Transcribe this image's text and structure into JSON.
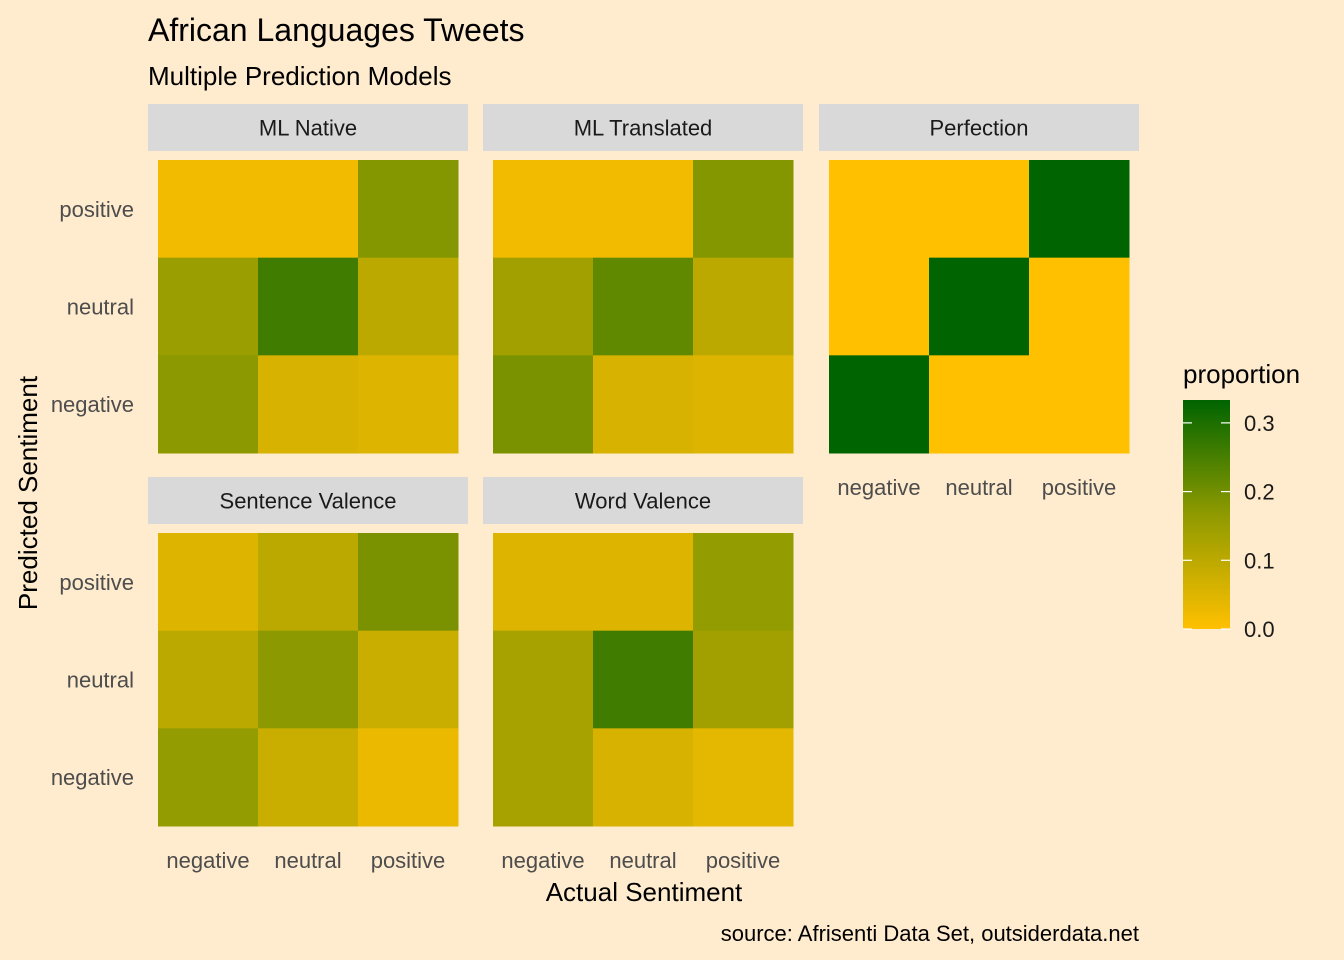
{
  "chart_data": {
    "type": "heatmap",
    "title": "African Languages Tweets",
    "subtitle": "Multiple Prediction Models",
    "xlabel": "Actual Sentiment",
    "ylabel": "Predicted Sentiment",
    "caption": "source: Afrisenti Data Set, outsiderdata.net",
    "categories_x": [
      "negative",
      "neutral",
      "positive"
    ],
    "categories_y": [
      "negative",
      "neutral",
      "positive"
    ],
    "legend": {
      "title": "proportion",
      "ticks": [
        "0.0",
        "0.1",
        "0.2",
        "0.3"
      ],
      "tick_values": [
        0,
        0.1,
        0.2,
        0.3
      ],
      "range": [
        0,
        0.3333
      ],
      "low_color": "#FFC000",
      "mid_color": "#8F9A00",
      "high_color": "#006400",
      "placement": "right"
    },
    "panels": [
      {
        "name": "ML Native",
        "cells": [
          {
            "actual": "negative",
            "predicted": "positive",
            "value": 0.02
          },
          {
            "actual": "neutral",
            "predicted": "positive",
            "value": 0.02
          },
          {
            "actual": "positive",
            "predicted": "positive",
            "value": 0.18
          },
          {
            "actual": "negative",
            "predicted": "neutral",
            "value": 0.15
          },
          {
            "actual": "neutral",
            "predicted": "neutral",
            "value": 0.26
          },
          {
            "actual": "positive",
            "predicted": "neutral",
            "value": 0.1
          },
          {
            "actual": "negative",
            "predicted": "negative",
            "value": 0.17
          },
          {
            "actual": "neutral",
            "predicted": "negative",
            "value": 0.06
          },
          {
            "actual": "positive",
            "predicted": "negative",
            "value": 0.05
          }
        ]
      },
      {
        "name": "ML Translated",
        "cells": [
          {
            "actual": "negative",
            "predicted": "positive",
            "value": 0.02
          },
          {
            "actual": "neutral",
            "predicted": "positive",
            "value": 0.02
          },
          {
            "actual": "positive",
            "predicted": "positive",
            "value": 0.18
          },
          {
            "actual": "negative",
            "predicted": "neutral",
            "value": 0.14
          },
          {
            "actual": "neutral",
            "predicted": "neutral",
            "value": 0.22
          },
          {
            "actual": "positive",
            "predicted": "neutral",
            "value": 0.1
          },
          {
            "actual": "negative",
            "predicted": "negative",
            "value": 0.19
          },
          {
            "actual": "neutral",
            "predicted": "negative",
            "value": 0.06
          },
          {
            "actual": "positive",
            "predicted": "negative",
            "value": 0.05
          }
        ]
      },
      {
        "name": "Perfection",
        "cells": [
          {
            "actual": "negative",
            "predicted": "positive",
            "value": 0.0
          },
          {
            "actual": "neutral",
            "predicted": "positive",
            "value": 0.0
          },
          {
            "actual": "positive",
            "predicted": "positive",
            "value": 0.3333
          },
          {
            "actual": "negative",
            "predicted": "neutral",
            "value": 0.0
          },
          {
            "actual": "neutral",
            "predicted": "neutral",
            "value": 0.3333
          },
          {
            "actual": "positive",
            "predicted": "neutral",
            "value": 0.0
          },
          {
            "actual": "negative",
            "predicted": "negative",
            "value": 0.3333
          },
          {
            "actual": "neutral",
            "predicted": "negative",
            "value": 0.0
          },
          {
            "actual": "positive",
            "predicted": "negative",
            "value": 0.0
          }
        ]
      },
      {
        "name": "Sentence Valence",
        "cells": [
          {
            "actual": "negative",
            "predicted": "positive",
            "value": 0.05
          },
          {
            "actual": "neutral",
            "predicted": "positive",
            "value": 0.1
          },
          {
            "actual": "positive",
            "predicted": "positive",
            "value": 0.19
          },
          {
            "actual": "negative",
            "predicted": "neutral",
            "value": 0.1
          },
          {
            "actual": "neutral",
            "predicted": "neutral",
            "value": 0.17
          },
          {
            "actual": "positive",
            "predicted": "neutral",
            "value": 0.08
          },
          {
            "actual": "negative",
            "predicted": "negative",
            "value": 0.16
          },
          {
            "actual": "neutral",
            "predicted": "negative",
            "value": 0.08
          },
          {
            "actual": "positive",
            "predicted": "negative",
            "value": 0.03
          }
        ]
      },
      {
        "name": "Word Valence",
        "cells": [
          {
            "actual": "negative",
            "predicted": "positive",
            "value": 0.05
          },
          {
            "actual": "neutral",
            "predicted": "positive",
            "value": 0.05
          },
          {
            "actual": "positive",
            "predicted": "positive",
            "value": 0.16
          },
          {
            "actual": "negative",
            "predicted": "neutral",
            "value": 0.13
          },
          {
            "actual": "neutral",
            "predicted": "neutral",
            "value": 0.26
          },
          {
            "actual": "positive",
            "predicted": "neutral",
            "value": 0.14
          },
          {
            "actual": "negative",
            "predicted": "negative",
            "value": 0.13
          },
          {
            "actual": "neutral",
            "predicted": "negative",
            "value": 0.06
          },
          {
            "actual": "positive",
            "predicted": "negative",
            "value": 0.04
          }
        ]
      }
    ]
  }
}
